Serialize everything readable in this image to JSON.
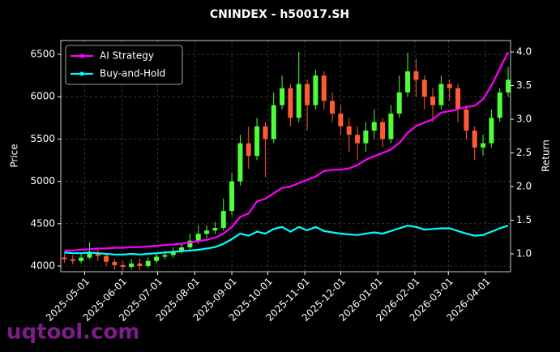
{
  "chart_data": {
    "type": "candlestick",
    "title": "CNINDEX - h50017.SH",
    "ylabel": "Price",
    "y2label": "Return",
    "watermark": "uqtool.com",
    "x": [
      "2025-04-14",
      "2025-04-21",
      "2025-04-28",
      "2025-05-05",
      "2025-05-12",
      "2025-05-19",
      "2025-05-26",
      "2025-06-02",
      "2025-06-09",
      "2025-06-16",
      "2025-06-23",
      "2025-06-30",
      "2025-07-07",
      "2025-07-14",
      "2025-07-21",
      "2025-07-28",
      "2025-08-04",
      "2025-08-11",
      "2025-08-18",
      "2025-08-25",
      "2025-09-01",
      "2025-09-08",
      "2025-09-15",
      "2025-09-22",
      "2025-09-29",
      "2025-10-06",
      "2025-10-13",
      "2025-10-20",
      "2025-10-27",
      "2025-11-03",
      "2025-11-10",
      "2025-11-17",
      "2025-11-24",
      "2025-12-01",
      "2025-12-08",
      "2025-12-15",
      "2025-12-22",
      "2025-12-29",
      "2026-01-05",
      "2026-01-12",
      "2026-01-19",
      "2026-01-26",
      "2026-02-02",
      "2026-02-09",
      "2026-02-16",
      "2026-02-23",
      "2026-03-02",
      "2026-03-09",
      "2026-03-16",
      "2026-03-23",
      "2026-03-30",
      "2026-04-06",
      "2026-04-13",
      "2026-04-20"
    ],
    "candles": {
      "up_color": "#4cff3a",
      "down_color": "#ff5a36",
      "open": [
        4100,
        4080,
        4060,
        4100,
        4150,
        4120,
        4050,
        4010,
        3990,
        4030,
        4000,
        4060,
        4110,
        4130,
        4170,
        4220,
        4300,
        4380,
        4420,
        4450,
        4650,
        5000,
        5450,
        5300,
        5650,
        5500,
        5900,
        6100,
        5750,
        6150,
        5900,
        6250,
        5950,
        5800,
        5650,
        5550,
        5450,
        5600,
        5700,
        5500,
        5800,
        6050,
        6300,
        6200,
        6000,
        5900,
        6150,
        6100,
        5850,
        5600,
        5400,
        5450,
        5750,
        6050
      ],
      "high": [
        4150,
        4130,
        4160,
        4280,
        4200,
        4150,
        4080,
        4060,
        4080,
        4090,
        4100,
        4150,
        4180,
        4220,
        4270,
        4380,
        4480,
        4480,
        4520,
        4800,
        5100,
        5550,
        5650,
        5750,
        5700,
        6050,
        6250,
        6150,
        6530,
        6200,
        6320,
        6300,
        6050,
        5900,
        5750,
        5650,
        5700,
        5850,
        5750,
        5900,
        6250,
        6520,
        6450,
        6250,
        6100,
        6250,
        6200,
        6150,
        5900,
        5650,
        5550,
        5850,
        6100,
        6350
      ],
      "low": [
        4040,
        4020,
        4030,
        4080,
        4060,
        4000,
        3960,
        3950,
        3960,
        3950,
        3980,
        4030,
        4080,
        4100,
        4150,
        4200,
        4260,
        4330,
        4380,
        4420,
        4600,
        4950,
        5150,
        5250,
        5050,
        5450,
        5850,
        5650,
        5700,
        5600,
        5850,
        5850,
        5700,
        5550,
        5350,
        5250,
        5350,
        5500,
        5400,
        5450,
        5750,
        6000,
        6000,
        5850,
        5700,
        5850,
        5950,
        5700,
        5500,
        5250,
        5300,
        5400,
        5700,
        6000
      ],
      "close": [
        4080,
        4060,
        4100,
        4150,
        4120,
        4050,
        4010,
        3990,
        4030,
        4000,
        4060,
        4110,
        4130,
        4170,
        4220,
        4300,
        4380,
        4420,
        4450,
        4650,
        5000,
        5450,
        5300,
        5650,
        5500,
        5900,
        6100,
        5750,
        6150,
        5900,
        6250,
        5950,
        5800,
        5650,
        5550,
        5450,
        5600,
        5700,
        5500,
        5800,
        6050,
        6300,
        6200,
        6000,
        5900,
        6150,
        6100,
        5850,
        5600,
        5400,
        5450,
        5750,
        6050,
        6200
      ]
    },
    "series": [
      {
        "name": "AI Strategy",
        "color": "#ff00ff",
        "axis": "y2",
        "values": [
          1.05,
          1.05,
          1.06,
          1.07,
          1.08,
          1.08,
          1.09,
          1.09,
          1.1,
          1.1,
          1.11,
          1.12,
          1.13,
          1.14,
          1.15,
          1.17,
          1.19,
          1.21,
          1.24,
          1.3,
          1.4,
          1.55,
          1.6,
          1.78,
          1.82,
          1.9,
          1.98,
          2.0,
          2.05,
          2.1,
          2.15,
          2.23,
          2.25,
          2.25,
          2.27,
          2.32,
          2.4,
          2.45,
          2.5,
          2.55,
          2.65,
          2.8,
          2.9,
          2.95,
          3.0,
          3.1,
          3.12,
          3.15,
          3.18,
          3.2,
          3.3,
          3.5,
          3.75,
          4.0
        ]
      },
      {
        "name": "Buy-and-Hold",
        "color": "#00ffff",
        "axis": "y2",
        "values": [
          1.02,
          1.01,
          1.01,
          1.02,
          1.01,
          1.0,
          0.99,
          0.99,
          1.0,
          0.99,
          1.0,
          1.01,
          1.02,
          1.03,
          1.04,
          1.05,
          1.06,
          1.08,
          1.1,
          1.15,
          1.22,
          1.3,
          1.27,
          1.33,
          1.3,
          1.37,
          1.4,
          1.33,
          1.4,
          1.35,
          1.4,
          1.34,
          1.32,
          1.3,
          1.29,
          1.28,
          1.3,
          1.32,
          1.3,
          1.34,
          1.38,
          1.42,
          1.4,
          1.36,
          1.37,
          1.38,
          1.38,
          1.34,
          1.3,
          1.27,
          1.28,
          1.33,
          1.38,
          1.42
        ]
      }
    ],
    "xlim": [
      "2025-04-11",
      "2026-04-22"
    ],
    "xticks": [
      "2025-05-01",
      "2025-06-01",
      "2025-07-01",
      "2025-08-01",
      "2025-09-01",
      "2025-10-01",
      "2025-11-01",
      "2025-12-01",
      "2026-01-01",
      "2026-02-01",
      "2026-03-01",
      "2026-04-01"
    ],
    "ylim": [
      3933,
      6663
    ],
    "yticks": [
      4000,
      4500,
      5000,
      5500,
      6000,
      6500
    ],
    "y2lim": [
      0.735,
      4.17
    ],
    "y2ticks": [
      {
        "value": 1,
        "label": "1.0"
      },
      1.5,
      {
        "value": 2,
        "label": "2.0"
      },
      2.5,
      {
        "value": 3,
        "label": "3.0"
      },
      3.5,
      {
        "value": 4,
        "label": "4.0"
      }
    ],
    "grid": true,
    "legend": "upper left"
  }
}
